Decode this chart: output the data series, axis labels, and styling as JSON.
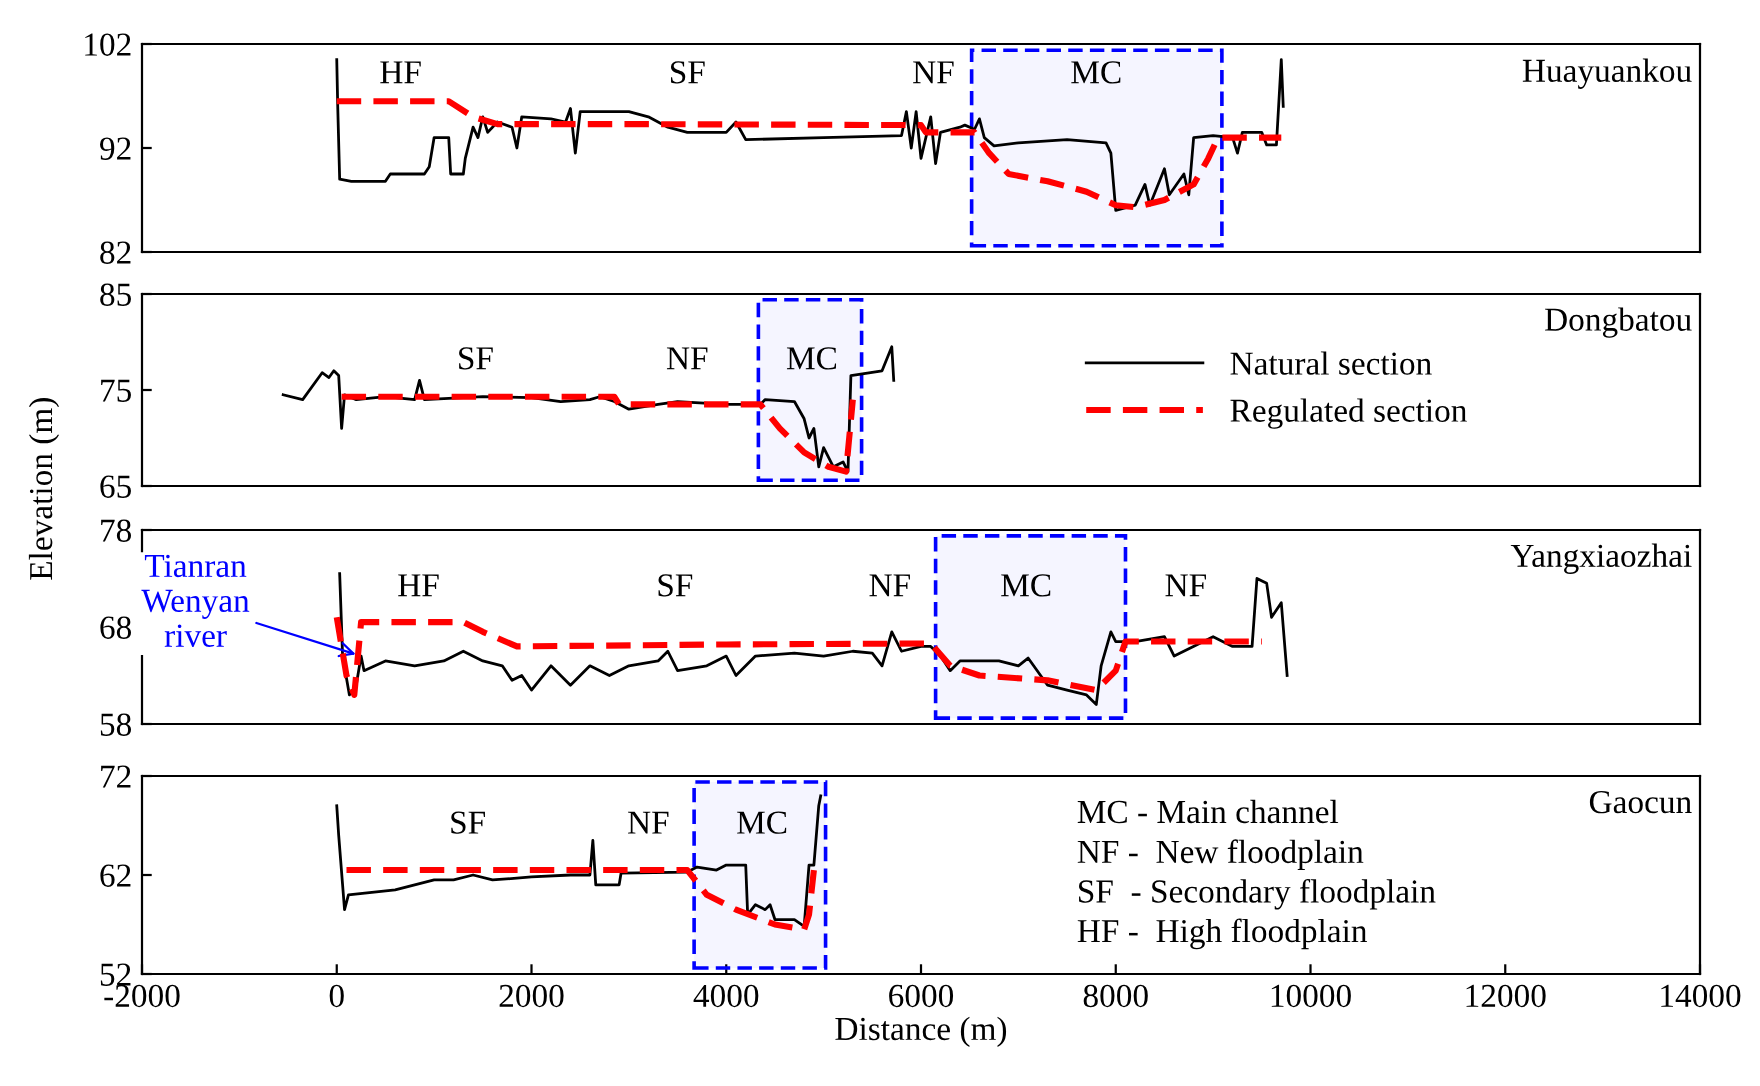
{
  "chart_data": [
    {
      "type": "line",
      "xlim": [
        -2000,
        14000
      ],
      "ylim": [
        82,
        102
      ],
      "yticks": [
        82,
        92,
        102
      ],
      "tick_labels": "y",
      "grid": false,
      "legend": false,
      "series": [
        {
          "color": "#000000",
          "line_style": "solid",
          "x": [
            0,
            10,
            30,
            150,
            500,
            550,
            900,
            950,
            1000,
            1150,
            1170,
            1300,
            1320,
            1400,
            1450,
            1500,
            1550,
            1650,
            1800,
            1850,
            1900,
            2200,
            2350,
            2400,
            2450,
            2500,
            3000,
            3200,
            3400,
            3600,
            4000,
            4100,
            4200,
            5000,
            5800,
            5850,
            5900,
            5950,
            6000,
            6100,
            6150,
            6200,
            6400,
            6450,
            6550,
            6600,
            6650,
            6750,
            7000,
            7500,
            7900,
            7950,
            8000,
            8200,
            8300,
            8350,
            8500,
            8550,
            8700,
            8750,
            8800,
            9000,
            9200,
            9250,
            9300,
            9500,
            9550,
            9650,
            9700,
            9720
          ],
          "values": [
            100.5,
            96,
            89,
            88.8,
            88.8,
            89.5,
            89.5,
            90.2,
            93,
            93,
            89.5,
            89.5,
            91,
            94,
            93,
            95,
            93.5,
            94.5,
            94,
            92,
            95,
            94.8,
            94.5,
            95.8,
            91.5,
            95.5,
            95.5,
            95,
            94,
            93.5,
            93.5,
            94.5,
            92.8,
            93,
            93.2,
            95.5,
            92,
            95.5,
            91,
            95,
            90.5,
            93.5,
            94,
            94.2,
            93.8,
            94.8,
            93,
            92.2,
            92.5,
            92.8,
            92.5,
            91.5,
            86,
            86.5,
            88.5,
            86.5,
            90,
            87.5,
            89.5,
            87.5,
            93,
            93.2,
            93,
            91.5,
            93.5,
            93.5,
            92.3,
            92.3,
            100.5,
            96
          ]
        },
        {
          "color": "#ff0000",
          "line_style": "dashed",
          "x": [
            0,
            1150,
            1400,
            1650,
            3000,
            6000,
            6050,
            6550,
            6700,
            6900,
            7300,
            7700,
            8000,
            8200,
            8500,
            8800,
            8950,
            9050,
            9700
          ],
          "values": [
            96.5,
            96.5,
            95,
            94.3,
            94.3,
            94.2,
            93.5,
            93.5,
            91.5,
            89.5,
            88.8,
            87.8,
            86.5,
            86.3,
            87,
            88.5,
            91,
            93,
            93
          ]
        }
      ],
      "bands": [
        {
          "axis": "x",
          "from": 6520,
          "to": 9090,
          "color": "#0000ff"
        }
      ],
      "annotations": [
        "Huayuankou",
        "HF",
        "SF",
        "NF",
        "MC"
      ]
    },
    {
      "type": "line",
      "xlim": [
        -2000,
        14000
      ],
      "ylim": [
        65,
        85
      ],
      "yticks": [
        65,
        75,
        85
      ],
      "tick_labels": "y",
      "grid": false,
      "legend": "right",
      "series": [
        {
          "name": "Natural section",
          "color": "#000000",
          "line_style": "solid",
          "x": [
            -550,
            -350,
            -150,
            -80,
            -30,
            20,
            50,
            80,
            200,
            500,
            800,
            850,
            900,
            1500,
            2000,
            2300,
            2600,
            2700,
            2850,
            3000,
            3300,
            3500,
            4000,
            4350,
            4400,
            4700,
            4800,
            4850,
            4900,
            4950,
            5000,
            5100,
            5200,
            5250,
            5280,
            5600,
            5700,
            5720
          ],
          "values": [
            74.5,
            74,
            76.8,
            76.3,
            77,
            76.5,
            71,
            74.5,
            74,
            74.3,
            74,
            76,
            74,
            74.3,
            74.2,
            73.8,
            74,
            74.3,
            73.8,
            73,
            73.5,
            73.8,
            73.5,
            73.5,
            74,
            73.8,
            72,
            70,
            71,
            67,
            69,
            67,
            67.5,
            66.5,
            76.5,
            77,
            79.5,
            76
          ]
        },
        {
          "name": "Regulated section",
          "color": "#ff0000",
          "line_style": "dashed",
          "x": [
            50,
            2850,
            2900,
            4350,
            4550,
            4800,
            5050,
            5230,
            5300
          ],
          "values": [
            74.3,
            74.3,
            73.5,
            73.5,
            71,
            68.5,
            67,
            66.5,
            74
          ]
        }
      ],
      "bands": [
        {
          "axis": "x",
          "from": 4330,
          "to": 5390,
          "color": "#0000ff"
        }
      ],
      "ylabel": "Elevation (m)",
      "annotations": [
        "Dongbatou",
        "SF",
        "NF",
        "MC"
      ]
    },
    {
      "type": "line",
      "xlim": [
        -2000,
        14000
      ],
      "ylim": [
        58,
        78
      ],
      "yticks": [
        58,
        68,
        78
      ],
      "tick_labels": "y",
      "grid": false,
      "legend": false,
      "series": [
        {
          "color": "#000000",
          "line_style": "solid",
          "x": [
            30,
            60,
            130,
            200,
            250,
            280,
            500,
            800,
            1100,
            1300,
            1500,
            1700,
            1800,
            1900,
            2000,
            2200,
            2400,
            2600,
            2800,
            3000,
            3300,
            3400,
            3500,
            3800,
            4000,
            4100,
            4300,
            4700,
            5000,
            5300,
            5500,
            5600,
            5700,
            5800,
            6000,
            6100,
            6200,
            6300,
            6400,
            6800,
            7000,
            7100,
            7300,
            7500,
            7700,
            7800,
            7850,
            7950,
            8000,
            8200,
            8500,
            8600,
            9000,
            9200,
            9400,
            9450,
            9550,
            9600,
            9700,
            9760
          ],
          "values": [
            73.5,
            65,
            61,
            62,
            65,
            63.5,
            64.5,
            64,
            64.5,
            65.5,
            64.5,
            64,
            62.5,
            63,
            61.5,
            64,
            62,
            64,
            63,
            64,
            64.5,
            65.5,
            63.5,
            64,
            65,
            63,
            65,
            65.3,
            65,
            65.5,
            65.3,
            64,
            67.5,
            65.5,
            66,
            66,
            65,
            63.5,
            64.5,
            64.5,
            64,
            64.8,
            62,
            61.5,
            61,
            60,
            64,
            67.5,
            66.5,
            66.5,
            67,
            65,
            67,
            66,
            66,
            73,
            72.5,
            69,
            70.5,
            63
          ]
        },
        {
          "color": "#ff0000",
          "line_style": "dashed",
          "x": [
            0,
            100,
            180,
            250,
            1300,
            1500,
            1850,
            4000,
            6100,
            6300,
            6600,
            7300,
            7800,
            8000,
            8100,
            9500
          ],
          "values": [
            69,
            63,
            61,
            68.5,
            68.5,
            67.5,
            66,
            66.2,
            66.3,
            64,
            63,
            62.5,
            61.5,
            63.5,
            66.5,
            66.5
          ]
        }
      ],
      "bands": [
        {
          "axis": "x",
          "from": 6150,
          "to": 8100,
          "color": "#0000ff"
        }
      ],
      "annotations": [
        "Yangxiaozhai",
        {
          "text": "Tianran\nWenyan\nriver",
          "x": 250,
          "y": 65
        },
        "HF",
        "SF",
        "NF",
        "MC",
        "NF"
      ]
    },
    {
      "type": "line",
      "xlim": [
        -2000,
        14000
      ],
      "xticks": [
        -2000,
        0,
        2000,
        4000,
        6000,
        8000,
        10000,
        12000,
        14000
      ],
      "ylim": [
        52,
        72
      ],
      "yticks": [
        52,
        62,
        72
      ],
      "grid": false,
      "legend": false,
      "xlabel": "Distance (m)",
      "series": [
        {
          "color": "#000000",
          "line_style": "solid",
          "x": [
            0,
            20,
            60,
            80,
            120,
            600,
            1000,
            1200,
            1400,
            1600,
            2000,
            2400,
            2600,
            2630,
            2660,
            2900,
            2920,
            3600,
            3700,
            3900,
            4000,
            4200,
            4220,
            4300,
            4400,
            4450,
            4500,
            4700,
            4800,
            4850,
            4900,
            4950,
            4970
          ],
          "values": [
            69,
            66,
            61,
            58.5,
            60,
            60.5,
            61.5,
            61.5,
            62,
            61.5,
            61.8,
            62,
            62,
            65.5,
            61,
            61,
            62.2,
            62.3,
            62.8,
            62.5,
            63,
            63,
            58,
            59,
            58.5,
            59,
            57.5,
            57.5,
            56.8,
            63,
            63,
            69,
            70
          ]
        },
        {
          "color": "#ff0000",
          "line_style": "dashed",
          "x": [
            100,
            3600,
            3800,
            4100,
            4500,
            4800,
            4850,
            4900
          ],
          "values": [
            62.5,
            62.5,
            60,
            58.5,
            57,
            56.5,
            58,
            62.5
          ]
        }
      ],
      "bands": [
        {
          "axis": "x",
          "from": 3670,
          "to": 5020,
          "color": "#0000ff"
        }
      ],
      "annotations": [
        "Gaocun",
        "SF",
        "NF",
        "MC",
        "MC - Main channel",
        "NF -  New floodplain",
        "SF  - Secondary floodplain",
        "HF -  High floodplain"
      ]
    }
  ]
}
